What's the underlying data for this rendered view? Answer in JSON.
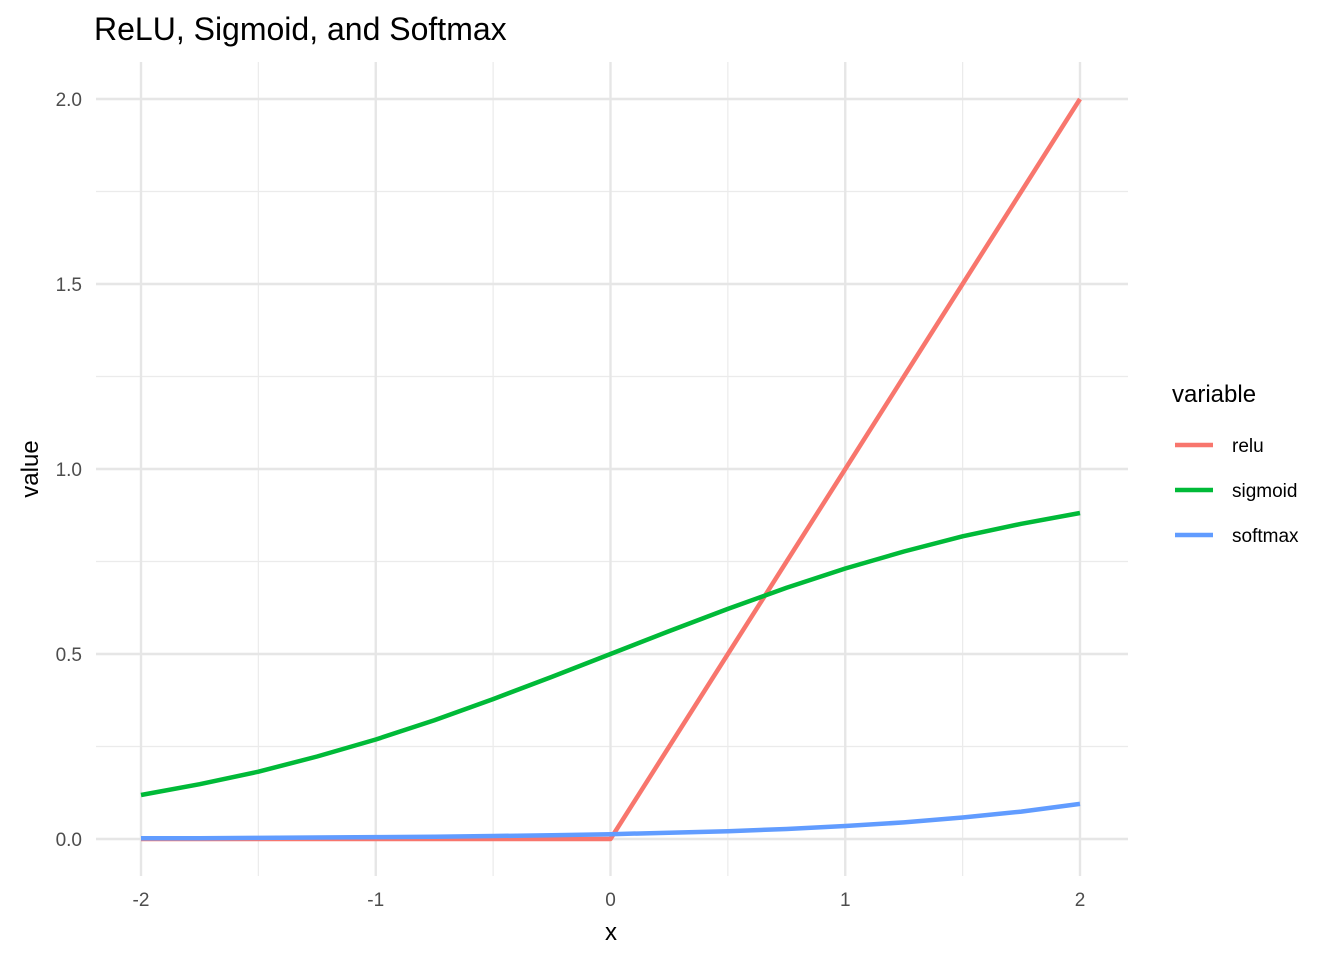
{
  "chart_data": {
    "type": "line",
    "title": "ReLU, Sigmoid, and Softmax",
    "xlabel": "x",
    "ylabel": "value",
    "xlim": [
      -2,
      2
    ],
    "ylim": [
      0,
      2
    ],
    "x_ticks": [
      -2,
      -1,
      0,
      1,
      2
    ],
    "x_tick_labels": [
      "-2",
      "-1",
      "0",
      "1",
      "2"
    ],
    "y_ticks": [
      0,
      0.5,
      1,
      1.5,
      2
    ],
    "y_tick_labels": [
      "0.0",
      "0.5",
      "1.0",
      "1.5",
      "2.0"
    ],
    "grid": true,
    "legend": {
      "title": "variable",
      "position": "right"
    },
    "x": [
      -2.0,
      -1.75,
      -1.5,
      -1.25,
      -1.0,
      -0.75,
      -0.5,
      -0.25,
      0.0,
      0.25,
      0.5,
      0.75,
      1.0,
      1.25,
      1.5,
      1.75,
      2.0
    ],
    "series": [
      {
        "name": "relu",
        "color": "#F8766D",
        "values": [
          0,
          0,
          0,
          0,
          0,
          0,
          0,
          0,
          0,
          0.25,
          0.5,
          0.75,
          1.0,
          1.25,
          1.5,
          1.75,
          2.0
        ]
      },
      {
        "name": "sigmoid",
        "color": "#00BA38",
        "values": [
          0.119,
          0.148,
          0.182,
          0.223,
          0.269,
          0.321,
          0.378,
          0.438,
          0.5,
          0.562,
          0.622,
          0.679,
          0.731,
          0.777,
          0.818,
          0.852,
          0.881
        ]
      },
      {
        "name": "softmax",
        "color": "#619CFF",
        "values": [
          0.002,
          0.002,
          0.003,
          0.004,
          0.005,
          0.006,
          0.008,
          0.01,
          0.013,
          0.017,
          0.021,
          0.027,
          0.035,
          0.045,
          0.058,
          0.074,
          0.095
        ]
      }
    ]
  }
}
